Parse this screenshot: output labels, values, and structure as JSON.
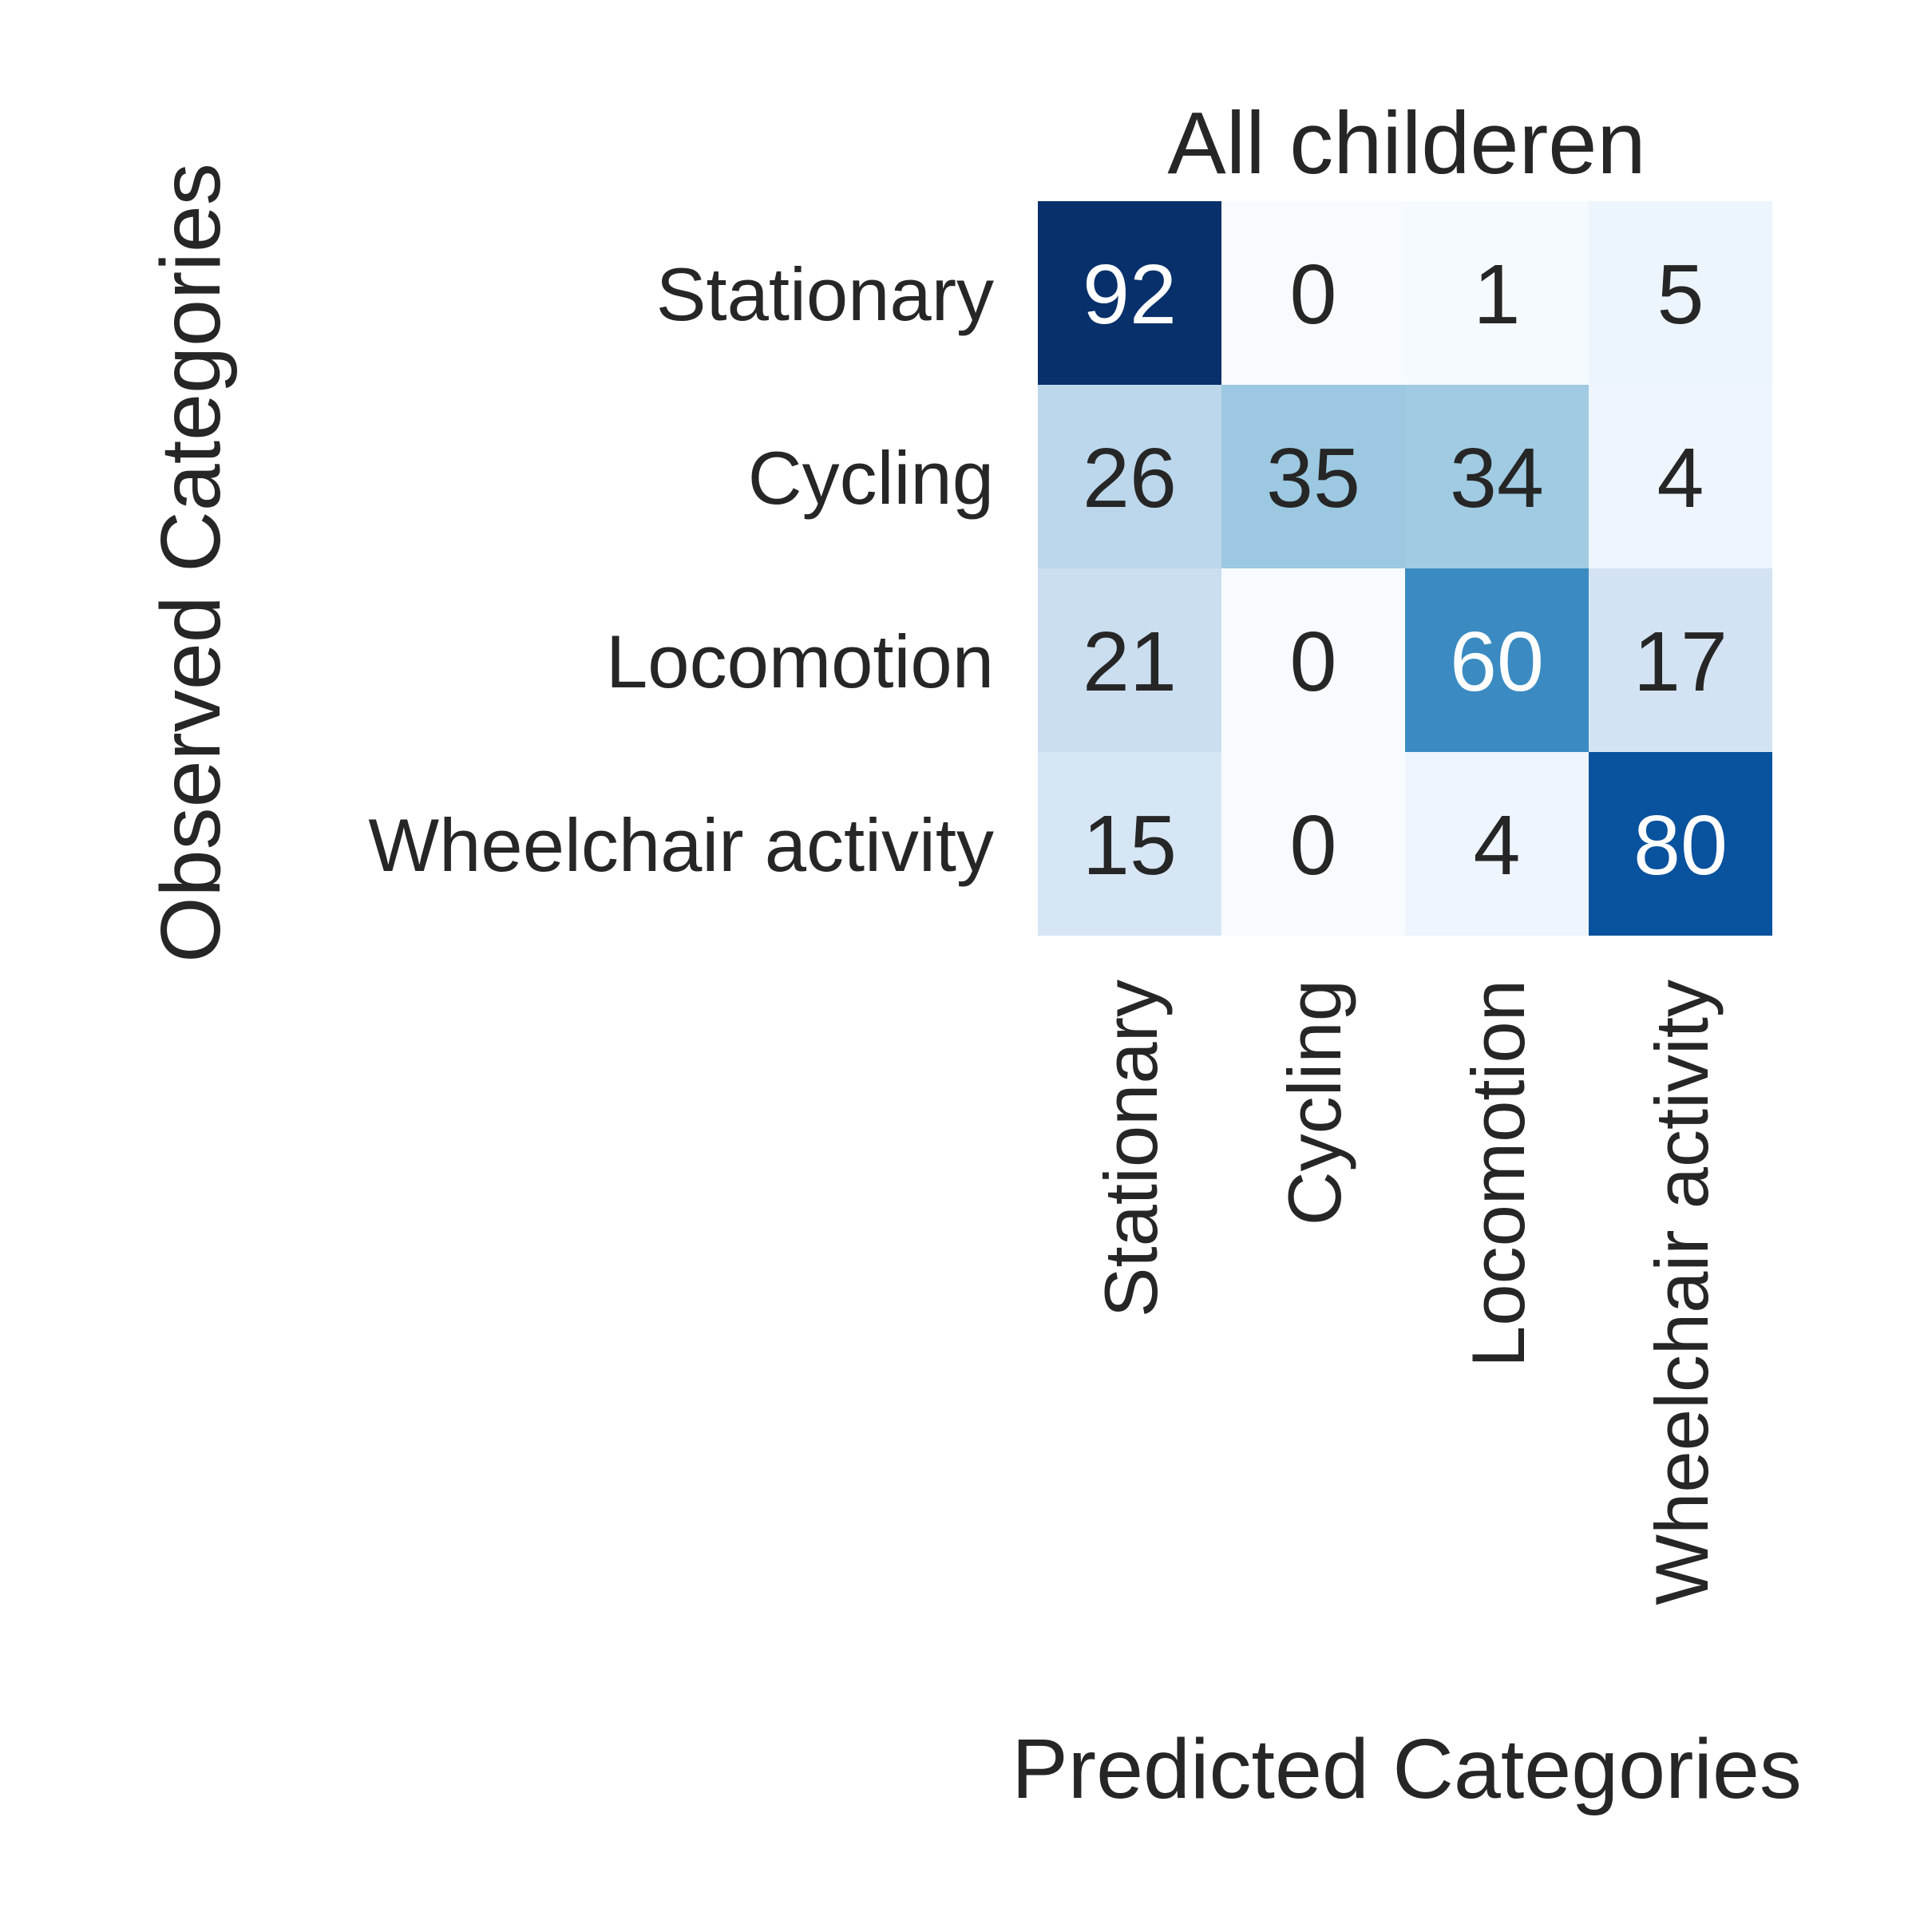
{
  "chart_data": {
    "type": "heatmap",
    "title": "All childeren",
    "xlabel": "Predicted Categories",
    "ylabel": "Observed Categories",
    "x_categories": [
      "Stationary",
      "Cycling",
      "Locomotion",
      "Wheelchair activity"
    ],
    "y_categories": [
      "Stationary",
      "Cycling",
      "Locomotion",
      "Wheelchair activity"
    ],
    "values": [
      [
        92,
        0,
        1,
        5
      ],
      [
        26,
        35,
        34,
        4
      ],
      [
        21,
        0,
        60,
        17
      ],
      [
        15,
        0,
        4,
        80
      ]
    ],
    "colormap": "Blues",
    "value_range": [
      0,
      92
    ],
    "colorbar": false,
    "grid": false
  }
}
